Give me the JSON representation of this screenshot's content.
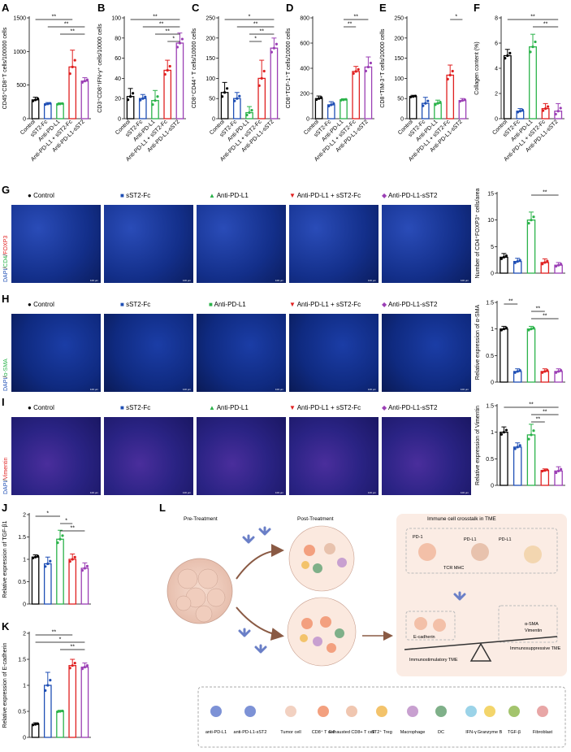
{
  "panels": {
    "A": {
      "label": "A",
      "ylabel": "CD45⁺CD8⁺⁺T cells/100000 cells",
      "ylabel_text": "CD45⁺CD8⁺T cells/100000 cells"
    },
    "B": {
      "label": "B",
      "ylabel_text": "CD3⁺CD8⁺IFN-γ⁺ cells/10000 cells"
    },
    "C": {
      "label": "C",
      "ylabel_text": "CD8⁺CD44⁺ T cells/10000 cells"
    },
    "D": {
      "label": "D",
      "ylabel_text": "CD8⁺TCF-1⁺T cells/10000 cells"
    },
    "E": {
      "label": "E",
      "ylabel_text": "CD8⁺TIM-3⁺T cells/10000 cells"
    },
    "F": {
      "label": "F",
      "ylabel_text": "Collagen content (%)"
    },
    "G": {
      "label": "G",
      "stain": "DAPI/CD4/FOXP3",
      "ylabel_text": "Number of CD4⁺FOXP3⁺ cells/area"
    },
    "H": {
      "label": "H",
      "stain": "DAPI/α-SMA",
      "ylabel_text": "Relative expression of α-SMA"
    },
    "I": {
      "label": "I",
      "stain": "DAPI/Vimentin",
      "ylabel_text": "Relative expression of Vimentin"
    },
    "J": {
      "label": "J",
      "ylabel_text": "Relative expression of TGF-β1"
    },
    "K": {
      "label": "K",
      "ylabel_text": "Relative expression of E-cadherin"
    },
    "L": {
      "label": "L"
    }
  },
  "groups": [
    "Control",
    "sST2-Fc",
    "Anti-PD-L1",
    "Anti-PD-L1 + sST2-Fc",
    "Anti-PD-L1-sST2"
  ],
  "group_colors": [
    "#000000",
    "#1f4fb5",
    "#2bb34a",
    "#e02020",
    "#9b3fb5"
  ],
  "scale_bar": "100 μm",
  "chart_data": [
    {
      "panel": "A",
      "type": "bar",
      "categories": [
        "Control",
        "sST2-Fc",
        "Anti-PD-L1",
        "Anti-PD-L1 + sST2-Fc",
        "Anti-PD-L1-sST2"
      ],
      "values": [
        280,
        220,
        220,
        770,
        560
      ],
      "errors": [
        40,
        20,
        15,
        250,
        50
      ],
      "ylim": [
        0,
        1500
      ],
      "yticks": [
        0,
        500,
        1000,
        1500
      ],
      "sig": [
        [
          "0",
          "3",
          "**"
        ],
        [
          "1",
          "4",
          "**"
        ],
        [
          "2",
          "4",
          "**"
        ]
      ]
    },
    {
      "panel": "B",
      "type": "bar",
      "categories": [
        "Control",
        "sST2-Fc",
        "Anti-PD-L1",
        "Anti-PD-L1 + sST2-Fc",
        "Anti-PD-L1-sST2"
      ],
      "values": [
        22,
        20,
        18,
        48,
        75
      ],
      "errors": [
        8,
        4,
        10,
        10,
        10
      ],
      "ylim": [
        0,
        100
      ],
      "yticks": [
        0,
        20,
        40,
        60,
        80,
        100
      ],
      "sig": [
        [
          "0",
          "4",
          "**"
        ],
        [
          "1",
          "4",
          "**"
        ],
        [
          "2",
          "4",
          "**"
        ],
        [
          "3",
          "4",
          "*"
        ]
      ]
    },
    {
      "panel": "C",
      "type": "bar",
      "categories": [
        "Control",
        "sST2-Fc",
        "Anti-PD-L1",
        "Anti-PD-L1 + sST2-Fc",
        "Anti-PD-L1-sST2"
      ],
      "values": [
        65,
        50,
        15,
        100,
        175
      ],
      "errors": [
        25,
        15,
        15,
        45,
        25
      ],
      "ylim": [
        0,
        250
      ],
      "yticks": [
        0,
        50,
        100,
        150,
        200,
        250
      ],
      "sig": [
        [
          "0",
          "4",
          "*"
        ],
        [
          "1",
          "4",
          "**"
        ],
        [
          "2",
          "4",
          "**"
        ],
        [
          "2",
          "3",
          "*"
        ]
      ]
    },
    {
      "panel": "D",
      "type": "bar",
      "categories": [
        "Control",
        "sST2-Fc",
        "Anti-PD-L1",
        "Anti-PD-L1 + sST2-Fc",
        "Anti-PD-L1-sST2"
      ],
      "values": [
        160,
        110,
        150,
        375,
        410
      ],
      "errors": [
        20,
        25,
        8,
        40,
        80
      ],
      "ylim": [
        0,
        800
      ],
      "yticks": [
        0,
        200,
        400,
        600,
        800
      ],
      "sig": [
        [
          "2",
          "4",
          "**"
        ],
        [
          "2",
          "3",
          "**"
        ]
      ]
    },
    {
      "panel": "E",
      "type": "bar",
      "categories": [
        "Control",
        "sST2-Fc",
        "Anti-PD-L1",
        "Anti-PD-L1 + sST2-Fc",
        "Anti-PD-L1-sST2"
      ],
      "values": [
        55,
        38,
        38,
        108,
        45
      ],
      "errors": [
        3,
        15,
        8,
        25,
        5
      ],
      "ylim": [
        0,
        250
      ],
      "yticks": [
        0,
        50,
        100,
        150,
        200,
        250
      ],
      "sig": [
        [
          "3",
          "4",
          "*"
        ]
      ]
    },
    {
      "panel": "F",
      "type": "bar",
      "categories": [
        "Control",
        "sST2-Fc",
        "Anti-PD-L1",
        "Anti-PD-L1 + sST2-Fc",
        "Anti-PD-L1-sST2"
      ],
      "values": [
        5,
        0.6,
        5.7,
        0.8,
        0.6
      ],
      "errors": [
        0.5,
        0.2,
        1,
        0.4,
        0.6
      ],
      "ylim": [
        0,
        8
      ],
      "yticks": [
        0,
        2,
        4,
        6,
        8
      ],
      "sig": [
        [
          "0",
          "4",
          "**"
        ],
        [
          "2",
          "4",
          "**"
        ]
      ]
    },
    {
      "panel": "G",
      "type": "bar",
      "categories": [
        "Control",
        "sST2-Fc",
        "Anti-PD-L1",
        "Anti-PD-L1 + sST2-Fc",
        "Anti-PD-L1-sST2"
      ],
      "values": [
        3,
        2.2,
        10,
        2,
        1.5
      ],
      "errors": [
        0.7,
        0.6,
        1.5,
        0.7,
        0.5
      ],
      "ylim": [
        0,
        15
      ],
      "yticks": [
        0,
        5,
        10,
        15
      ],
      "sig": [
        [
          "2",
          "4",
          "**"
        ]
      ]
    },
    {
      "panel": "H",
      "type": "bar",
      "categories": [
        "Control",
        "sST2-Fc",
        "Anti-PD-L1",
        "Anti-PD-L1 + sST2-Fc",
        "Anti-PD-L1-sST2"
      ],
      "values": [
        1.0,
        0.2,
        1.0,
        0.2,
        0.2
      ],
      "errors": [
        0.05,
        0.05,
        0.05,
        0.05,
        0.05
      ],
      "ylim": [
        0,
        1.5
      ],
      "yticks": [
        0,
        0.5,
        1.0,
        1.5
      ],
      "sig": [
        [
          "0",
          "1",
          "**"
        ],
        [
          "2",
          "3",
          "**"
        ],
        [
          "2",
          "4",
          "**"
        ]
      ]
    },
    {
      "panel": "I",
      "type": "bar",
      "categories": [
        "Control",
        "sST2-Fc",
        "Anti-PD-L1",
        "Anti-PD-L1 + sST2-Fc",
        "Anti-PD-L1-sST2"
      ],
      "values": [
        1.0,
        0.72,
        0.95,
        0.28,
        0.27
      ],
      "errors": [
        0.1,
        0.08,
        0.2,
        0.03,
        0.08
      ],
      "ylim": [
        0,
        1.5
      ],
      "yticks": [
        0,
        0.5,
        1.0,
        1.5
      ],
      "sig": [
        [
          "0",
          "4",
          "**"
        ],
        [
          "2",
          "4",
          "**"
        ],
        [
          "2",
          "3",
          "**"
        ]
      ]
    },
    {
      "panel": "J",
      "type": "bar",
      "categories": [
        "Control",
        "sST2-Fc",
        "Anti-PD-L1",
        "Anti-PD-L1 + sST2-Fc",
        "Anti-PD-L1-sST2"
      ],
      "values": [
        1.05,
        0.9,
        1.45,
        1.0,
        0.8
      ],
      "errors": [
        0.05,
        0.15,
        0.2,
        0.12,
        0.12
      ],
      "ylim": [
        0,
        2.0
      ],
      "yticks": [
        0,
        0.5,
        1.0,
        1.5,
        2.0
      ],
      "sig": [
        [
          "0",
          "2",
          "*"
        ],
        [
          "2",
          "3",
          "*"
        ],
        [
          "2",
          "4",
          "**"
        ]
      ]
    },
    {
      "panel": "K",
      "type": "bar",
      "categories": [
        "Control",
        "sST2-Fc",
        "Anti-PD-L1",
        "Anti-PD-L1 + sST2-Fc",
        "Anti-PD-L1-sST2"
      ],
      "values": [
        0.25,
        1.0,
        0.5,
        1.38,
        1.35
      ],
      "errors": [
        0.03,
        0.25,
        0.02,
        0.12,
        0.08
      ],
      "ylim": [
        0,
        2.0
      ],
      "yticks": [
        0,
        0.5,
        1.0,
        1.5,
        2.0
      ],
      "sig": [
        [
          "0",
          "3",
          "**"
        ],
        [
          "0",
          "4",
          "*"
        ],
        [
          "2",
          "4",
          "**"
        ]
      ]
    }
  ],
  "schematic": {
    "pre_treatment": "Pre-Treatment",
    "post_treatment": "Post-Treatment",
    "crosstalk_title": "Immune cell crosstalk in TME",
    "pd1": "PD-1",
    "pdl1_a": "PD-L1",
    "pdl1_b": "PD-L1",
    "tcr_mhc": "TCR MHC",
    "ecadherin": "E-cadherin",
    "asma": "α-SMA",
    "vimentin": "Vimentin",
    "immunostim": "Immunostimulatory TME",
    "immunosupp": "Immunosuppressive TME",
    "legend": [
      "anti-PD-L1",
      "anti-PD-L1-sST2",
      "Tumor cell",
      "CD8⁺ T cell",
      "Exhausted CD8+ T cell",
      "ST2⁺ Treg",
      "Macrophage",
      "DC",
      "IFN-γ",
      "Granzyme B",
      "TGF-β",
      "Fibroblast"
    ]
  }
}
